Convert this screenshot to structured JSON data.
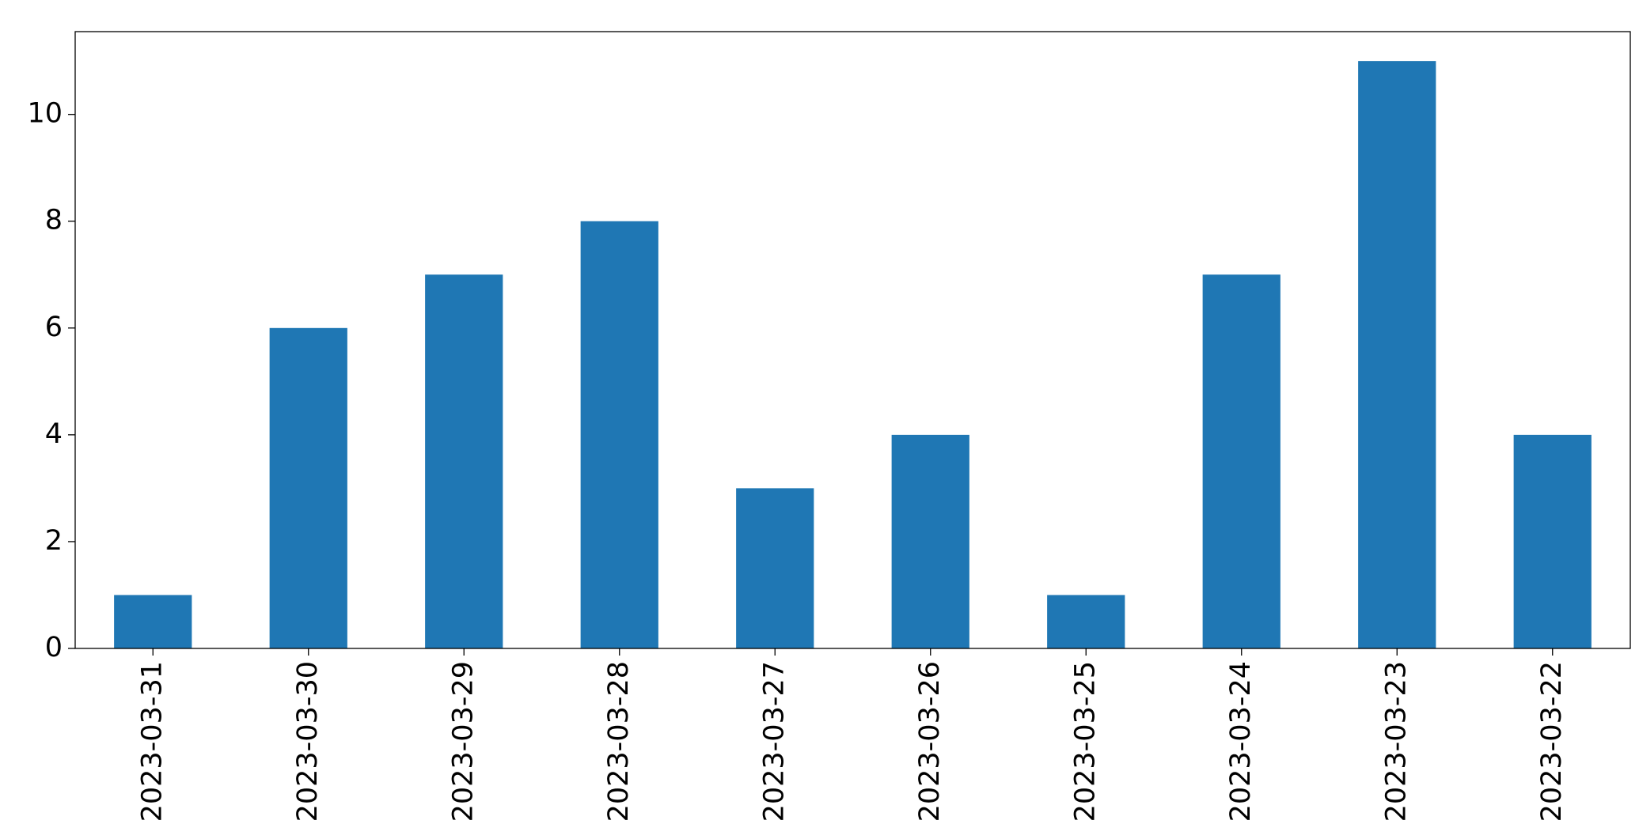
{
  "chart_data": {
    "type": "bar",
    "categories": [
      "2023-03-31",
      "2023-03-30",
      "2023-03-29",
      "2023-03-28",
      "2023-03-27",
      "2023-03-26",
      "2023-03-25",
      "2023-03-24",
      "2023-03-23",
      "2023-03-22"
    ],
    "values": [
      1,
      6,
      7,
      8,
      3,
      4,
      1,
      7,
      11,
      4
    ],
    "color": "#1f77b4",
    "ylim": [
      0,
      11.55
    ],
    "yticks": [
      0,
      2,
      4,
      6,
      8,
      10
    ],
    "grid": false
  }
}
